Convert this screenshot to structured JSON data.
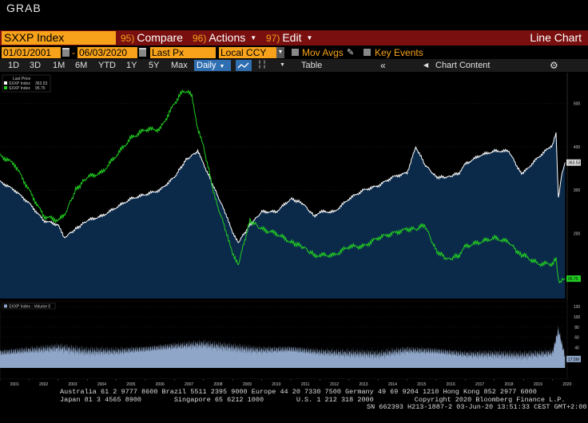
{
  "window": {
    "title": "GRAB"
  },
  "toolbar": {
    "ticker": "SXXP Index",
    "compare": {
      "num": "95)",
      "label": "Compare"
    },
    "actions": {
      "num": "96)",
      "label": "Actions"
    },
    "edit": {
      "num": "97)",
      "label": "Edit"
    },
    "chart_type": "Line Chart",
    "start_date": "01/01/2001",
    "date_sep": "-",
    "end_date": "06/03/2020",
    "price_field": "Last Px",
    "currency": "Local CCY",
    "mov_avgs": "Mov Avgs",
    "key_events": "Key Events",
    "ranges": [
      "1D",
      "3D",
      "1M",
      "6M",
      "YTD",
      "1Y",
      "5Y",
      "Max"
    ],
    "frequency": "Daily",
    "table": "Table",
    "chart_content": "Chart Content"
  },
  "colors": {
    "accent": "#f7a21a",
    "bar": "#7a0f0f",
    "sxxp": "#ffffff",
    "sxxp_fill": "#0b2a4a",
    "sector": "#22cc22",
    "volume": "#8fa6c8"
  },
  "chart_data": [
    {
      "type": "line",
      "legend_title": "Last Price",
      "legend_position": "top-left",
      "series": [
        {
          "name": "SXXP Index",
          "last_value": "363.53",
          "x": [
            2001.0,
            2001.5,
            2002.0,
            2002.5,
            2003.0,
            2003.2,
            2003.6,
            2004.0,
            2004.5,
            2005.0,
            2005.5,
            2006.0,
            2006.5,
            2007.0,
            2007.4,
            2007.8,
            2008.0,
            2008.4,
            2008.8,
            2009.0,
            2009.2,
            2009.6,
            2010.0,
            2010.5,
            2011.0,
            2011.4,
            2011.8,
            2012.0,
            2012.5,
            2013.0,
            2013.5,
            2014.0,
            2014.5,
            2015.0,
            2015.3,
            2015.6,
            2016.0,
            2016.4,
            2016.8,
            2017.0,
            2017.5,
            2018.0,
            2018.5,
            2018.9,
            2019.0,
            2019.5,
            2020.0,
            2020.12,
            2020.2,
            2020.3,
            2020.43
          ],
          "y": [
            320,
            300,
            270,
            230,
            220,
            190,
            210,
            230,
            240,
            260,
            280,
            290,
            300,
            330,
            370,
            390,
            360,
            300,
            240,
            200,
            180,
            220,
            250,
            250,
            280,
            270,
            240,
            250,
            250,
            280,
            300,
            310,
            330,
            340,
            400,
            360,
            330,
            330,
            340,
            360,
            380,
            390,
            390,
            340,
            340,
            375,
            405,
            430,
            280,
            330,
            363.53
          ]
        },
        {
          "name": "SXXP Index",
          "last_value": "95.75",
          "x": [
            2001.0,
            2001.5,
            2002.0,
            2002.5,
            2003.0,
            2003.2,
            2003.6,
            2004.0,
            2004.5,
            2005.0,
            2005.5,
            2006.0,
            2006.5,
            2007.0,
            2007.3,
            2007.6,
            2007.8,
            2008.0,
            2008.4,
            2008.8,
            2009.0,
            2009.2,
            2009.6,
            2010.0,
            2010.5,
            2011.0,
            2011.4,
            2011.8,
            2012.0,
            2012.5,
            2013.0,
            2013.5,
            2014.0,
            2014.5,
            2015.0,
            2015.3,
            2015.6,
            2016.0,
            2016.4,
            2016.8,
            2017.0,
            2017.5,
            2018.0,
            2018.5,
            2018.9,
            2019.0,
            2019.5,
            2020.0,
            2020.12,
            2020.2,
            2020.3,
            2020.43
          ],
          "y": [
            380,
            360,
            300,
            240,
            230,
            240,
            300,
            330,
            340,
            380,
            420,
            440,
            440,
            500,
            530,
            520,
            440,
            400,
            280,
            200,
            150,
            130,
            230,
            210,
            200,
            180,
            170,
            150,
            150,
            150,
            170,
            170,
            190,
            200,
            210,
            210,
            220,
            160,
            140,
            150,
            170,
            180,
            190,
            180,
            150,
            150,
            130,
            130,
            140,
            90,
            90,
            95.75
          ]
        }
      ],
      "yticks": [
        100,
        200,
        300,
        400,
        500
      ],
      "ylim": [
        50,
        560
      ]
    },
    {
      "type": "area",
      "legend": "SXXP Index - Volume 0",
      "yticks": [
        20,
        40,
        60,
        80,
        100,
        120
      ],
      "ylim": [
        0,
        125
      ],
      "last_value": "17.5M",
      "series": [
        {
          "name": "SXXP Index - Volume 0",
          "x": [
            2001,
            2002,
            2003,
            2004,
            2005,
            2006,
            2007,
            2008,
            2009,
            2010,
            2011,
            2012,
            2013,
            2014,
            2015,
            2016,
            2017,
            2018,
            2019,
            2020,
            2020.2,
            2020.43
          ],
          "y": [
            25,
            30,
            35,
            28,
            28,
            32,
            38,
            42,
            35,
            30,
            32,
            26,
            24,
            22,
            30,
            28,
            22,
            22,
            20,
            25,
            70,
            17.5
          ]
        }
      ]
    }
  ],
  "x_axis_years": [
    "2001",
    "2002",
    "2003",
    "2004",
    "2005",
    "2006",
    "2007",
    "2008",
    "2009",
    "2010",
    "2011",
    "2012",
    "2013",
    "2014",
    "2015",
    "2016",
    "2017",
    "2018",
    "2019",
    "2020"
  ],
  "footer": {
    "line1": "Australia 61 2 9777 8600 Brazil 5511 2395 9000 Europe 44 20 7330 7500 Germany 49 69 9204 1210 Hong Kong 852 2977 6000",
    "line2": "Japan 81 3 4565 8900        Singapore 65 6212 1000        U.S. 1 212 318 2000          Copyright 2020 Bloomberg Finance L.P.",
    "line3": "SN 662393 H213-1887-2 03-Jun-20 13:51:33 CEST GMT+2:00"
  }
}
